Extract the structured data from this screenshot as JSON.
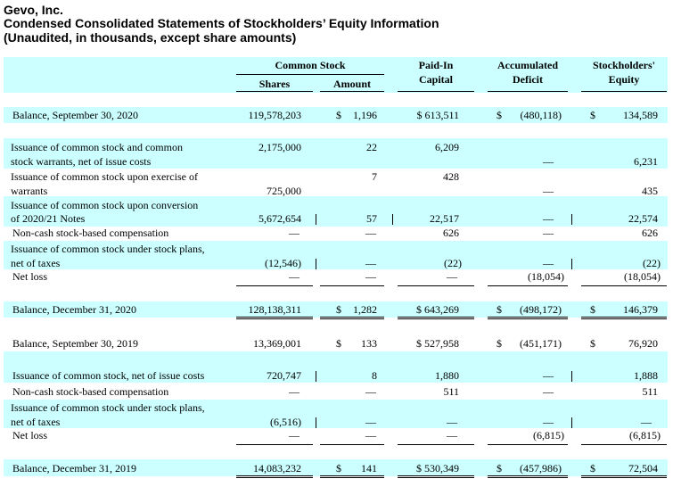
{
  "header": {
    "company": "Gevo, Inc.",
    "title": "Condensed Consolidated Statements of Stockholders’ Equity Information",
    "subtitle": "(Unaudited, in thousands, except share amounts)"
  },
  "columns": {
    "common_stock": "Common Stock",
    "shares": "Shares",
    "amount": "Amount",
    "paid_in_1": "Paid-In",
    "paid_in_2": "Capital",
    "accumulated_1": "Accumulated",
    "accumulated_2": "Deficit",
    "equity_1": "Stockholders'",
    "equity_2": "Equity"
  },
  "dash": "—",
  "rows": {
    "bal_sep_2020": {
      "label": "Balance, September 30, 2020",
      "shares": "119,578,203",
      "amount_sym": "$",
      "amount": "1,196",
      "paid_in": "$ 613,511",
      "deficit_sym": "$",
      "deficit": "(480,118)",
      "equity_sym": "$",
      "equity": "134,589"
    },
    "iss_common_warrants": {
      "label_1": "Issuance of common stock and common",
      "label_2": "stock warrants, net of issue costs",
      "shares": "2,175,000",
      "amount": "22",
      "paid_in": "6,209",
      "deficit": "—",
      "equity": "6,231"
    },
    "iss_exercise_warrants": {
      "label_1": "Issuance of common stock upon exercise of",
      "label_2": "warrants",
      "shares": "725,000",
      "amount": "7",
      "paid_in": "428",
      "deficit": "—",
      "equity": "435"
    },
    "iss_conversion_notes": {
      "label_1": "Issuance of common stock upon conversion",
      "label_2": "of 2020/21 Notes",
      "shares": "5,672,654",
      "amount": "57",
      "paid_in": "22,517",
      "deficit": "—",
      "equity": "22,574"
    },
    "noncash_2020": {
      "label": "Non-cash stock-based compensation",
      "shares": "—",
      "amount": "—",
      "paid_in": "626",
      "deficit": "—",
      "equity": "626"
    },
    "iss_stock_plans_2020": {
      "label_1": "Issuance of common stock under stock plans,",
      "label_2": "net of taxes",
      "shares": "(12,546)",
      "amount": "—",
      "paid_in": "(22)",
      "deficit": "—",
      "equity": "(22)"
    },
    "net_loss_2020": {
      "label": "Net loss",
      "shares": "—",
      "amount": "—",
      "paid_in": "—",
      "deficit": "(18,054)",
      "equity": "(18,054)"
    },
    "bal_dec_2020": {
      "label": "Balance, December 31, 2020",
      "shares": "128,138,311",
      "amount_sym": "$",
      "amount": "1,282",
      "paid_in": "$ 643,269",
      "deficit_sym": "$",
      "deficit": "(498,172)",
      "equity_sym": "$",
      "equity": "146,379"
    },
    "bal_sep_2019": {
      "label": "Balance, September 30, 2019",
      "shares": "13,369,001",
      "amount_sym": "$",
      "amount": "133",
      "paid_in": "$ 527,958",
      "deficit_sym": "$",
      "deficit": "(451,171)",
      "equity_sym": "$",
      "equity": "76,920"
    },
    "iss_common_2019": {
      "label": "Issuance of common stock, net of issue costs",
      "shares": "720,747",
      "amount": "8",
      "paid_in": "1,880",
      "deficit": "—",
      "equity": "1,888"
    },
    "noncash_2019": {
      "label": "Non-cash stock-based compensation",
      "shares": "—",
      "amount": "—",
      "paid_in": "511",
      "deficit": "—",
      "equity": "511"
    },
    "iss_stock_plans_2019": {
      "label_1": "Issuance of common stock under stock plans,",
      "label_2": "net of taxes",
      "shares": "(6,516)",
      "amount": "—",
      "paid_in": "—",
      "deficit": "—",
      "equity": "—"
    },
    "net_loss_2019": {
      "label": "Net loss",
      "shares": "—",
      "amount": "—",
      "paid_in": "—",
      "deficit": "(6,815)",
      "equity": "(6,815)"
    },
    "bal_dec_2019": {
      "label": "Balance, December 31, 2019",
      "shares": "14,083,232",
      "amount_sym": "$",
      "amount": "141",
      "paid_in": "$ 530,349",
      "deficit_sym": "$",
      "deficit": "(457,986)",
      "equity_sym": "$",
      "equity": "72,504"
    }
  }
}
